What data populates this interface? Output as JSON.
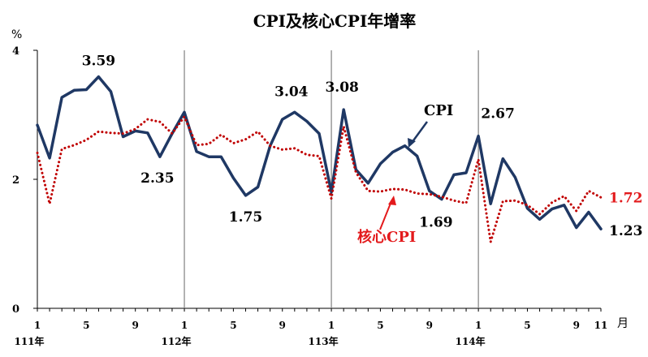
{
  "chart_data": {
    "type": "line",
    "title": "CPI及核心CPI年增率",
    "y_unit": "%",
    "x_unit": "月",
    "ylim": [
      0,
      4
    ],
    "y_ticks": [
      "0",
      "2",
      "4"
    ],
    "x_tick_labels": [
      {
        "index": 0,
        "label": "1"
      },
      {
        "index": 4,
        "label": "5"
      },
      {
        "index": 8,
        "label": "9"
      },
      {
        "index": 12,
        "label": "1"
      },
      {
        "index": 16,
        "label": "5"
      },
      {
        "index": 20,
        "label": "9"
      },
      {
        "index": 24,
        "label": "1"
      },
      {
        "index": 28,
        "label": "5"
      },
      {
        "index": 32,
        "label": "9"
      },
      {
        "index": 36,
        "label": "1"
      },
      {
        "index": 40,
        "label": "5"
      },
      {
        "index": 44,
        "label": "9"
      },
      {
        "index": 46,
        "label": "11"
      }
    ],
    "year_labels": [
      {
        "index": 0,
        "label": "111年"
      },
      {
        "index": 12,
        "label": "112年"
      },
      {
        "index": 24,
        "label": "113年"
      },
      {
        "index": 36,
        "label": "114年"
      }
    ],
    "year_dividers": [
      12,
      24,
      36
    ],
    "series": [
      {
        "name": "CPI",
        "color": "#1f3864",
        "style": "solid",
        "values": [
          2.84,
          2.33,
          3.27,
          3.38,
          3.39,
          3.59,
          3.36,
          2.66,
          2.75,
          2.72,
          2.35,
          2.71,
          3.04,
          2.43,
          2.35,
          2.35,
          2.02,
          1.75,
          1.88,
          2.52,
          2.93,
          3.04,
          2.9,
          2.71,
          1.8,
          3.08,
          2.15,
          1.94,
          2.24,
          2.42,
          2.52,
          2.36,
          1.82,
          1.69,
          2.07,
          2.1,
          2.67,
          1.62,
          2.32,
          2.03,
          1.55,
          1.38,
          1.54,
          1.6,
          1.25,
          1.49,
          1.23
        ]
      },
      {
        "name": "核心CPI",
        "color": "#c00000",
        "style": "dotted",
        "values": [
          2.41,
          1.62,
          2.47,
          2.53,
          2.61,
          2.74,
          2.72,
          2.71,
          2.78,
          2.93,
          2.89,
          2.71,
          2.97,
          2.53,
          2.55,
          2.69,
          2.56,
          2.62,
          2.74,
          2.52,
          2.46,
          2.48,
          2.38,
          2.36,
          1.7,
          2.82,
          2.11,
          1.82,
          1.81,
          1.85,
          1.84,
          1.78,
          1.77,
          1.73,
          1.67,
          1.63,
          2.31,
          1.03,
          1.66,
          1.67,
          1.6,
          1.46,
          1.64,
          1.74,
          1.51,
          1.82,
          1.72
        ]
      }
    ],
    "annotations": [
      {
        "index": 5,
        "series": "CPI",
        "label": "3.59"
      },
      {
        "index": 10,
        "series": "CPI",
        "label": "2.35"
      },
      {
        "index": 17,
        "series": "CPI",
        "label": "1.75"
      },
      {
        "index": 21,
        "series": "CPI",
        "label": "3.04"
      },
      {
        "index": 25,
        "series": "CPI",
        "label": "3.08"
      },
      {
        "index": 33,
        "series": "CPI",
        "label": "1.69"
      },
      {
        "index": 36,
        "series": "CPI",
        "label": "2.67"
      },
      {
        "index": 46,
        "series": "CPI",
        "label": "1.23"
      },
      {
        "index": 46,
        "series": "核心CPI",
        "label": "1.72"
      }
    ],
    "series_labels": {
      "cpi": "CPI",
      "core": "核心CPI"
    },
    "grid": false
  }
}
